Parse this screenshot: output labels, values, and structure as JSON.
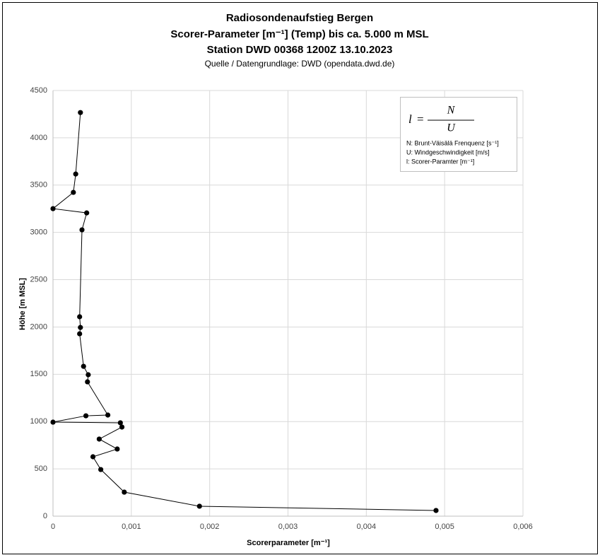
{
  "chart_data": {
    "type": "scatter",
    "title": "Radiosondenaufstieg Bergen",
    "subtitle": [
      "Scorer-Parameter [m⁻¹] (Temp) bis ca. 5.000 m MSL",
      "Station DWD 00368 1200Z 13.10.2023",
      "Quelle / Datengrundlage: DWD (opendata.dwd.de)"
    ],
    "x_label": "Scorerparameter [m⁻¹]",
    "y_label": "Höhe [m MSL]",
    "x": [
      0.00489,
      0.00187,
      0.00091,
      0.00061,
      0.00051,
      0.00082,
      0.00059,
      0.00088,
      0.00086,
      0,
      0.00042,
      0.0007,
      0.00044,
      0.00045,
      0.00039,
      0.00034,
      0.00035,
      0.00034,
      0.00037,
      0.00043,
      0,
      0.00026,
      0.00029,
      0.00035
    ],
    "values": [
      60,
      105,
      254,
      493,
      628,
      710,
      815,
      942,
      987,
      994,
      1061,
      1069,
      1420,
      1495,
      1584,
      1928,
      1995,
      2108,
      3027,
      3206,
      3251,
      3423,
      3617,
      4267
    ],
    "color": "#000000",
    "connect": true,
    "grid": true,
    "xlim": [
      0,
      0.006
    ],
    "xticks": [
      0,
      {
        "value": 0.001,
        "label": "0,001"
      },
      {
        "value": 0.002,
        "label": "0,002"
      },
      {
        "value": 0.003,
        "label": "0,003"
      },
      {
        "value": 0.004,
        "label": "0,004"
      },
      {
        "value": 0.005,
        "label": "0,005"
      },
      {
        "value": 0.006,
        "label": "0,006"
      }
    ],
    "ylim": [
      0,
      4500
    ],
    "yticks": [
      0,
      500,
      1000,
      1500,
      2000,
      2500,
      3000,
      3500,
      4000,
      4500
    ],
    "legend_box": {
      "formula": {
        "lhs": "l",
        "eq": "=",
        "numerator": "N",
        "denominator": "U"
      },
      "lines": [
        "N: Brunt-Väisälä Frenquenz [s⁻¹]",
        "U: Windgeschwindigkeit [m/s]",
        "l: Scorer-Paramter [m⁻¹]"
      ]
    }
  }
}
